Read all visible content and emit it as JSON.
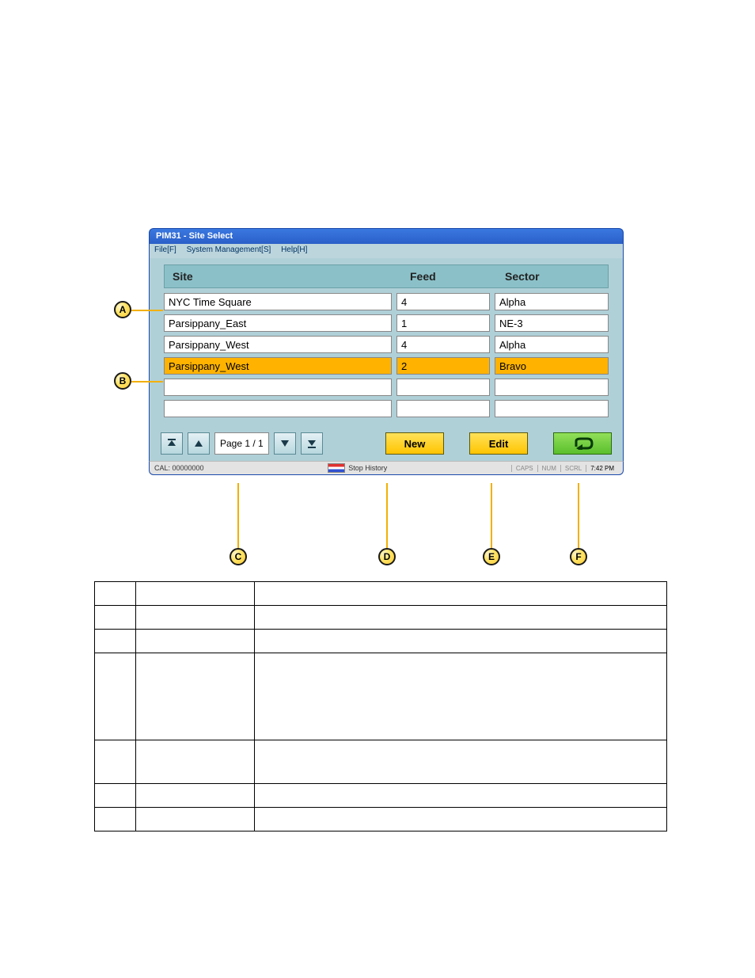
{
  "window": {
    "title": "PIM31 - Site Select"
  },
  "menu": {
    "file": "File[F]",
    "system": "System Management[S]",
    "help": "Help[H]"
  },
  "headers": {
    "site": "Site",
    "feed": "Feed",
    "sector": "Sector"
  },
  "rows": [
    {
      "site": "NYC Time Square",
      "feed": "4",
      "sector": "Alpha",
      "selected": false
    },
    {
      "site": "Parsippany_East",
      "feed": "1",
      "sector": "NE-3",
      "selected": false
    },
    {
      "site": "Parsippany_West",
      "feed": "4",
      "sector": "Alpha",
      "selected": false
    },
    {
      "site": "Parsippany_West",
      "feed": "2",
      "sector": "Bravo",
      "selected": true
    },
    {
      "site": "",
      "feed": "",
      "sector": "",
      "selected": false
    },
    {
      "site": "",
      "feed": "",
      "sector": "",
      "selected": false
    }
  ],
  "pager": {
    "label": "Page 1 / 1"
  },
  "buttons": {
    "new": "New",
    "edit": "Edit"
  },
  "status": {
    "cal": "CAL: 00000000",
    "stop_history": "Stop History",
    "caps": "CAPS",
    "num": "NUM",
    "scrl": "SCRL",
    "time": "7:42 PM"
  },
  "callouts": {
    "A": "A",
    "B": "B",
    "C": "C",
    "D": "D",
    "E": "E",
    "F": "F"
  },
  "styling": {
    "window_titlebar_gradient": [
      "#3a78e0",
      "#2a5fc8"
    ],
    "window_border": "#1a4aaa",
    "menubar_bg": "#bcd5dc",
    "content_bg": "#b0d0d8",
    "header_bg": "#8bc0c8",
    "selected_row_bg": "#ffb300",
    "cell_bg": "#ffffff",
    "cell_border": "#888888",
    "pager_btn_gradient": [
      "#e4f0f4",
      "#b8d8df"
    ],
    "btn_yellow_gradient": [
      "#ffe25a",
      "#ffc400"
    ],
    "btn_green_gradient": [
      "#92e05a",
      "#5abf2c"
    ],
    "callout_fill": [
      "#fff6d0",
      "#ffe56a",
      "#ffcc33"
    ],
    "callout_line": "#f2b000",
    "legend_border": "#000000"
  }
}
